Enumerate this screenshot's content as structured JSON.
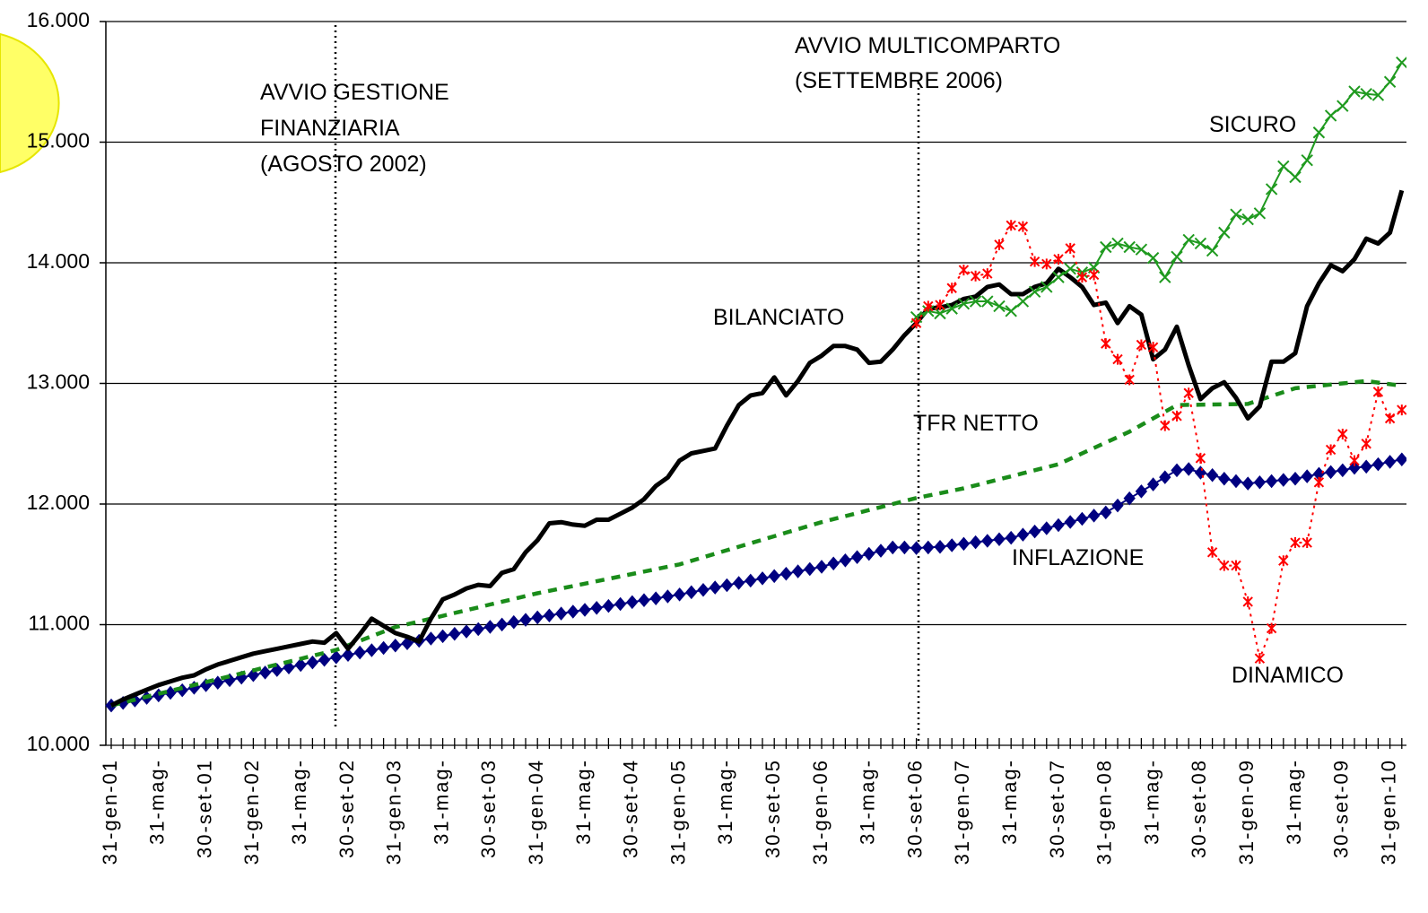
{
  "chart_data": {
    "type": "line",
    "annotations": [
      {
        "lines": [
          "AVVIO GESTIONE",
          "FINANZIARIA",
          "(AGOSTO 2002)"
        ]
      },
      {
        "lines": [
          "AVVIO MULTICOMPARTO",
          "(SETTEMBRE 2006)"
        ]
      }
    ],
    "categories": [
      "31-gen-01",
      null,
      null,
      null,
      "31-mag-",
      null,
      null,
      null,
      "30-set-01",
      null,
      null,
      null,
      "31-gen-02",
      null,
      null,
      null,
      "31-mag-",
      null,
      null,
      null,
      "30-set-02",
      null,
      null,
      null,
      "31-gen-03",
      null,
      null,
      null,
      "31-mag-",
      null,
      null,
      null,
      "30-set-03",
      null,
      null,
      null,
      "31-gen-04",
      null,
      null,
      null,
      "31-mag-",
      null,
      null,
      null,
      "30-set-04",
      null,
      null,
      null,
      "31-gen-05",
      null,
      null,
      null,
      "31-mag-",
      null,
      null,
      null,
      "30-set-05",
      null,
      null,
      null,
      "31-gen-06",
      null,
      null,
      null,
      "31-mag-",
      null,
      null,
      null,
      "30-set-06",
      null,
      null,
      null,
      "31-gen-07",
      null,
      null,
      null,
      "31-mag-",
      null,
      null,
      null,
      "30-set-07",
      null,
      null,
      null,
      "31-gen-08",
      null,
      null,
      null,
      "31-mag-",
      null,
      null,
      null,
      "30-set-08",
      null,
      null,
      null,
      "31-gen-09",
      null,
      null,
      null,
      "31-mag-",
      null,
      null,
      null,
      "30-set-09",
      null,
      null,
      null,
      "31-gen-10",
      null
    ],
    "ylim": [
      10000,
      16000
    ],
    "yticks": [
      {
        "value": 10000,
        "label": "10.000"
      },
      {
        "value": 11000,
        "label": "11.000"
      },
      {
        "value": 12000,
        "label": "12.000"
      },
      {
        "value": 13000,
        "label": "13.000"
      },
      {
        "value": 14000,
        "label": "14.000"
      },
      {
        "value": 15000,
        "label": "15.000"
      },
      {
        "value": 16000,
        "label": "16.000"
      }
    ],
    "grid": true,
    "series": [
      {
        "name": "INFLAZIONE",
        "color": "#000080",
        "marker": "diamond",
        "values": [
          10330,
          10351,
          10372,
          10393,
          10414,
          10435,
          10456,
          10477,
          10498,
          10519,
          10540,
          10561,
          10582,
          10603,
          10624,
          10645,
          10666,
          10687,
          10708,
          10730,
          10749,
          10769,
          10788,
          10807,
          10827,
          10846,
          10866,
          10885,
          10904,
          10924,
          10943,
          10963,
          10982,
          11001,
          11021,
          11040,
          11060,
          11076,
          11092,
          11108,
          11123,
          11139,
          11155,
          11171,
          11187,
          11203,
          11218,
          11234,
          11250,
          11269,
          11288,
          11308,
          11327,
          11346,
          11365,
          11384,
          11403,
          11422,
          11442,
          11461,
          11480,
          11507,
          11533,
          11560,
          11587,
          11613,
          11640,
          11640,
          11635,
          11640,
          11645,
          11658,
          11670,
          11683,
          11695,
          11708,
          11720,
          11746,
          11772,
          11799,
          11825,
          11851,
          11877,
          11904,
          11930,
          11988,
          12047,
          12105,
          12163,
          12222,
          12280,
          12290,
          12260,
          12240,
          12210,
          12190,
          12170,
          12180,
          12190,
          12200,
          12210,
          12230,
          12250,
          12265,
          12280,
          12300,
          12310,
          12330,
          12350,
          12370
        ]
      },
      {
        "name": "TFR NETTO",
        "color": "#1a8c1a",
        "dash": "dashed",
        "values": [
          10330,
          10354,
          10378,
          10403,
          10427,
          10451,
          10475,
          10500,
          10524,
          10548,
          10572,
          10596,
          10621,
          10645,
          10669,
          10693,
          10717,
          10742,
          10766,
          10790,
          10828,
          10866,
          10904,
          10942,
          10980,
          11003,
          11027,
          11050,
          11073,
          11097,
          11120,
          11143,
          11167,
          11190,
          11213,
          11237,
          11260,
          11280,
          11300,
          11320,
          11340,
          11360,
          11380,
          11400,
          11420,
          11440,
          11460,
          11480,
          11500,
          11529,
          11558,
          11588,
          11617,
          11646,
          11675,
          11704,
          11733,
          11763,
          11792,
          11821,
          11850,
          11875,
          11900,
          11925,
          11950,
          11975,
          12000,
          12025,
          12050,
          12070,
          12090,
          12110,
          12130,
          12155,
          12180,
          12205,
          12230,
          12255,
          12280,
          12305,
          12330,
          12375,
          12420,
          12465,
          12510,
          12555,
          12600,
          12655,
          12710,
          12765,
          12820,
          12822,
          12823,
          12825,
          12827,
          12828,
          12830,
          12863,
          12895,
          12928,
          12960,
          12970,
          12980,
          12990,
          13000,
          13010,
          13020,
          13007,
          12993,
          12980
        ]
      },
      {
        "name": "BILANCIATO",
        "color": "#000000",
        "values": [
          10330,
          10380,
          10420,
          10460,
          10500,
          10530,
          10560,
          10580,
          10630,
          10670,
          10700,
          10730,
          10760,
          10780,
          10800,
          10820,
          10840,
          10860,
          10850,
          10930,
          10800,
          10920,
          11050,
          10990,
          10930,
          10900,
          10860,
          11050,
          11210,
          11250,
          11300,
          11330,
          11320,
          11430,
          11460,
          11600,
          11700,
          11840,
          11850,
          11830,
          11820,
          11870,
          11870,
          11920,
          11970,
          12040,
          12150,
          12220,
          12360,
          12420,
          12440,
          12460,
          12650,
          12820,
          12900,
          12920,
          13050,
          12900,
          13020,
          13170,
          13230,
          13310,
          13310,
          13280,
          13170,
          13180,
          13280,
          13400,
          13500,
          13620,
          13630,
          13650,
          13700,
          13720,
          13800,
          13820,
          13740,
          13740,
          13800,
          13830,
          13950,
          13880,
          13800,
          13650,
          13670,
          13500,
          13640,
          13570,
          13200,
          13280,
          13470,
          13150,
          12870,
          12960,
          13010,
          12880,
          12710,
          12810,
          13180,
          13180,
          13250,
          13640,
          13830,
          13980,
          13930,
          14030,
          14200,
          14160,
          14250,
          14600
        ]
      },
      {
        "name": "SICURO",
        "color": "#1f9a1f",
        "marker": "x",
        "values": [
          null,
          null,
          null,
          null,
          null,
          null,
          null,
          null,
          null,
          null,
          null,
          null,
          null,
          null,
          null,
          null,
          null,
          null,
          null,
          null,
          null,
          null,
          null,
          null,
          null,
          null,
          null,
          null,
          null,
          null,
          null,
          null,
          null,
          null,
          null,
          null,
          null,
          null,
          null,
          null,
          null,
          null,
          null,
          null,
          null,
          null,
          null,
          null,
          null,
          null,
          null,
          null,
          null,
          null,
          null,
          null,
          null,
          null,
          null,
          null,
          null,
          null,
          null,
          null,
          null,
          null,
          null,
          null,
          13550,
          13600,
          13580,
          13620,
          13660,
          13680,
          13680,
          13640,
          13600,
          13680,
          13760,
          13800,
          13880,
          13950,
          13920,
          13960,
          14130,
          14160,
          14130,
          14110,
          14040,
          13880,
          14050,
          14190,
          14160,
          14100,
          14250,
          14400,
          14360,
          14410,
          14610,
          14800,
          14710,
          14850,
          15080,
          15220,
          15300,
          15420,
          15400,
          15390,
          15500,
          15660
        ]
      },
      {
        "name": "DINAMICO",
        "color": "#ff0000",
        "marker": "asterisk",
        "dash": "dotted",
        "values": [
          null,
          null,
          null,
          null,
          null,
          null,
          null,
          null,
          null,
          null,
          null,
          null,
          null,
          null,
          null,
          null,
          null,
          null,
          null,
          null,
          null,
          null,
          null,
          null,
          null,
          null,
          null,
          null,
          null,
          null,
          null,
          null,
          null,
          null,
          null,
          null,
          null,
          null,
          null,
          null,
          null,
          null,
          null,
          null,
          null,
          null,
          null,
          null,
          null,
          null,
          null,
          null,
          null,
          null,
          null,
          null,
          null,
          null,
          null,
          null,
          null,
          null,
          null,
          null,
          null,
          null,
          null,
          null,
          13500,
          13640,
          13650,
          13790,
          13940,
          13890,
          13910,
          14150,
          14310,
          14300,
          14010,
          13990,
          14030,
          14120,
          13880,
          13900,
          13330,
          13200,
          13030,
          13320,
          13300,
          12650,
          12730,
          12920,
          12380,
          11600,
          11490,
          11490,
          11190,
          10720,
          10970,
          11530,
          11680,
          11680,
          12180,
          12450,
          12580,
          12360,
          12500,
          12930,
          12710,
          12780
        ]
      }
    ]
  }
}
